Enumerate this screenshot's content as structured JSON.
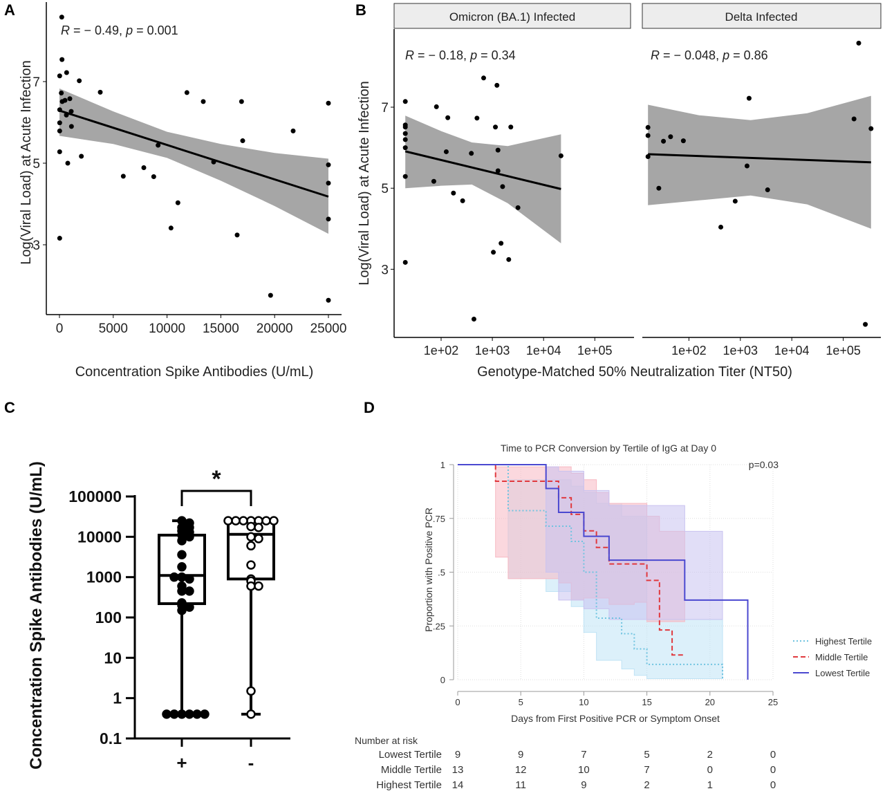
{
  "panel_letters": {
    "a": "A",
    "b": "B",
    "c": "C",
    "d": "D"
  },
  "chart_data": [
    {
      "panel": "A",
      "type": "scatter",
      "xlabel": "Concentration Spike Antibodies (U/mL)",
      "ylabel": "Log(Viral Load) at Acute Infection",
      "annotation": {
        "r_sym": "R",
        "r_val": " = − 0.49, ",
        "p_sym": "p",
        "p_val": " = 0.001"
      },
      "xlim": [
        -1220,
        25250
      ],
      "ylim": [
        1.31,
        9.0
      ],
      "xticks": [
        0,
        5000,
        10000,
        15000,
        20000,
        25000
      ],
      "xtick_labels": [
        "0",
        "5000",
        "10000",
        "15000",
        "20000",
        "25000"
      ],
      "yticks": [
        3,
        5,
        7
      ],
      "ytick_labels": [
        "3",
        "5",
        "7"
      ],
      "points": [
        [
          214,
          8.58
        ],
        [
          236,
          7.54
        ],
        [
          664,
          7.22
        ],
        [
          21,
          7.14
        ],
        [
          1842,
          7.02
        ],
        [
          3792,
          6.74
        ],
        [
          171,
          6.72
        ],
        [
          11847,
          6.73
        ],
        [
          964,
          6.58
        ],
        [
          514,
          6.54
        ],
        [
          257,
          6.51
        ],
        [
          13368,
          6.51
        ],
        [
          16924,
          6.51
        ],
        [
          25000,
          6.47
        ],
        [
          21,
          6.31
        ],
        [
          1093,
          6.27
        ],
        [
          643,
          6.18
        ],
        [
          21,
          5.99
        ],
        [
          1114,
          5.9
        ],
        [
          21,
          5.79
        ],
        [
          21722,
          5.79
        ],
        [
          17031,
          5.55
        ],
        [
          9169,
          5.44
        ],
        [
          14332,
          5.03
        ],
        [
          21,
          5.28
        ],
        [
          2035,
          5.17
        ],
        [
          771,
          5.0
        ],
        [
          25000,
          4.96
        ],
        [
          7841,
          4.89
        ],
        [
          5934,
          4.68
        ],
        [
          8762,
          4.67
        ],
        [
          25000,
          4.51
        ],
        [
          11011,
          4.03
        ],
        [
          10368,
          3.41
        ],
        [
          25000,
          3.63
        ],
        [
          16517,
          3.24
        ],
        [
          21,
          3.16
        ],
        [
          19623,
          1.76
        ],
        [
          25000,
          1.64
        ]
      ],
      "fit_line": [
        [
          0,
          6.29
        ],
        [
          25000,
          4.18
        ]
      ],
      "ci_band": {
        "x": [
          0,
          5000,
          10000,
          15000,
          20000,
          25000
        ],
        "lower": [
          5.67,
          5.47,
          5.13,
          4.57,
          3.95,
          3.27
        ],
        "upper": [
          6.83,
          6.27,
          5.77,
          5.47,
          5.25,
          5.11
        ]
      }
    },
    {
      "panel": "B",
      "type": "scatter",
      "xlabel": "Genotype-Matched 50% Neutralization Titer (NT50)",
      "ylabel": "Log(Viral Load) at Acute Infection",
      "xscale": "log",
      "yticks": [
        3,
        5,
        7
      ],
      "ytick_labels": [
        "3",
        "5",
        "7"
      ],
      "ylim": [
        1.3,
        8.93
      ],
      "xticks": [
        100,
        1000,
        10000,
        100000
      ],
      "xtick_labels": [
        "1e+02",
        "1e+03",
        "1e+04",
        "1e+05"
      ],
      "facets": [
        {
          "title": "Omicron (BA.1) Infected",
          "annotation": {
            "r_sym": "R",
            "r_val": " = − 0.18, ",
            "p_sym": "p",
            "p_val": " = 0.34"
          },
          "xlim": [
            12.3,
            575000
          ],
          "points": [
            [
              20,
              7.14
            ],
            [
              20,
              6.56
            ],
            [
              20,
              6.51
            ],
            [
              20,
              6.35
            ],
            [
              20,
              6.2
            ],
            [
              20,
              6.0
            ],
            [
              20,
              5.29
            ],
            [
              20,
              3.17
            ],
            [
              81,
              7.01
            ],
            [
              135,
              6.74
            ],
            [
              126,
              5.9
            ],
            [
              72,
              5.17
            ],
            [
              174,
              4.88
            ],
            [
              263,
              4.69
            ],
            [
              389,
              5.86
            ],
            [
              501,
              6.73
            ],
            [
              676,
              7.72
            ],
            [
              1230,
              7.54
            ],
            [
              1148,
              6.51
            ],
            [
              2291,
              6.51
            ],
            [
              1288,
              5.94
            ],
            [
              1288,
              5.43
            ],
            [
              1585,
              5.04
            ],
            [
              3162,
              4.52
            ],
            [
              1479,
              3.64
            ],
            [
              1047,
              3.42
            ],
            [
              2089,
              3.24
            ],
            [
              437,
              1.77
            ],
            [
              21878,
              5.8
            ]
          ],
          "fit_line": [
            [
              20,
              5.91
            ],
            [
              21878,
              4.98
            ]
          ],
          "ci_band": {
            "x": [
              20,
              100,
              398,
              1995,
              21878
            ],
            "lower": [
              5.0,
              5.06,
              5.09,
              4.63,
              3.64
            ],
            "upper": [
              6.79,
              6.41,
              6.13,
              6.04,
              6.33
            ]
          }
        },
        {
          "title": "Delta Infected",
          "annotation": {
            "r_sym": "R",
            "r_val": " = − 0.048, ",
            "p_sym": "p",
            "p_val": " = 0.86"
          },
          "xlim": [
            12.6,
            537000
          ],
          "points": [
            [
              16,
              6.5
            ],
            [
              16,
              6.3
            ],
            [
              16,
              5.78
            ],
            [
              32,
              6.16
            ],
            [
              44,
              6.27
            ],
            [
              78,
              6.17
            ],
            [
              26,
              5.0
            ],
            [
              417,
              4.04
            ],
            [
              794,
              4.68
            ],
            [
              1349,
              5.55
            ],
            [
              1479,
              7.22
            ],
            [
              3388,
              4.96
            ],
            [
              162000,
              6.71
            ],
            [
              200000,
              8.58
            ],
            [
              347000,
              6.47
            ],
            [
              269000,
              1.64
            ]
          ],
          "fit_line": [
            [
              16,
              5.84
            ],
            [
              347000,
              5.64
            ]
          ],
          "ci_band": {
            "x": [
              16,
              158,
              1585,
              19953,
              347000
            ],
            "lower": [
              4.58,
              4.7,
              4.82,
              4.6,
              4.0
            ],
            "upper": [
              7.06,
              6.8,
              6.68,
              6.85,
              7.28
            ]
          }
        }
      ]
    },
    {
      "panel": "C",
      "type": "box",
      "ylabel": "Concentration Spike Antibodies (U/mL)",
      "yscale": "log",
      "ylim": [
        0.1,
        100000
      ],
      "yticks": [
        0.1,
        1,
        10,
        100,
        1000,
        10000,
        100000
      ],
      "ytick_labels": [
        "0.1",
        "1",
        "10",
        "100",
        "1000",
        "10000",
        "100000"
      ],
      "categories": [
        "+",
        "-"
      ],
      "significance": "*",
      "groups": [
        {
          "category": "+",
          "min": 0.4,
          "q1": 220,
          "median": 1100,
          "q3": 11000,
          "max": 25000,
          "marker": "filled",
          "points": [
            25000,
            22000,
            17000,
            17000,
            14000,
            13000,
            11000,
            10000,
            8000,
            3600,
            1800,
            1000,
            900,
            1000,
            600,
            450,
            450,
            230,
            200,
            180,
            150,
            0.4,
            0.4,
            0.4,
            0.4,
            0.4,
            0.4
          ]
        },
        {
          "category": "-",
          "min": 0.4,
          "q1": 900,
          "median": 11500,
          "q3": 24000,
          "max": 25000,
          "marker": "open",
          "points": [
            25000,
            25000,
            25000,
            25000,
            25000,
            25000,
            25000,
            18000,
            17000,
            10000,
            9000,
            6000,
            2000,
            900,
            800,
            600,
            600,
            1.5,
            0.4
          ]
        }
      ]
    },
    {
      "panel": "D",
      "type": "line",
      "title": "Time to PCR Conversion by Tertile of IgG at Day 0",
      "pvalue": "p=0.03",
      "xlabel": "Days from First Positive PCR or Symptom Onset",
      "ylabel": "Proportion with Positive PCR",
      "xlim": [
        0,
        25
      ],
      "ylim": [
        0,
        1
      ],
      "xticks": [
        0,
        5,
        10,
        15,
        20,
        25
      ],
      "xtick_labels": [
        "0",
        "5",
        "10",
        "15",
        "20",
        "25"
      ],
      "yticks": [
        0,
        0.25,
        0.5,
        0.75,
        1
      ],
      "ytick_labels": [
        "0",
        ".25",
        ".5",
        ".75",
        "1"
      ],
      "grid": true,
      "legend_position": "right",
      "series": [
        {
          "name": "Highest Tertile",
          "color": "#6ec3e0",
          "style": "dotted",
          "fill": "#bfe3f5",
          "steps": [
            [
              0,
              1
            ],
            [
              4,
              0.786
            ],
            [
              7,
              0.714
            ],
            [
              9,
              0.643
            ],
            [
              10,
              0.5
            ],
            [
              11,
              0.286
            ],
            [
              13,
              0.214
            ],
            [
              14,
              0.143
            ],
            [
              15,
              0.071
            ],
            [
              21,
              0
            ]
          ],
          "end": 21,
          "ci_upper": [
            [
              4,
              0.93
            ],
            [
              9,
              0.9
            ],
            [
              10,
              0.87
            ],
            [
              11,
              0.82
            ],
            [
              13,
              0.76
            ],
            [
              15,
              0.28
            ],
            [
              21,
              0.28
            ]
          ],
          "ci_lower": [
            [
              4,
              0.47
            ],
            [
              7,
              0.41
            ],
            [
              9,
              0.34
            ],
            [
              10,
              0.22
            ],
            [
              11,
              0.09
            ],
            [
              13,
              0.05
            ],
            [
              14,
              0.02
            ],
            [
              15,
              0.005
            ],
            [
              21,
              0.005
            ]
          ]
        },
        {
          "name": "Middle Tertile",
          "color": "#e0393e",
          "style": "dashed",
          "fill": "#f7b8c2",
          "steps": [
            [
              0,
              1
            ],
            [
              3,
              0.923
            ],
            [
              8,
              0.846
            ],
            [
              9,
              0.769
            ],
            [
              10,
              0.692
            ],
            [
              11,
              0.615
            ],
            [
              12,
              0.538
            ],
            [
              15,
              0.462
            ],
            [
              16,
              0.231
            ],
            [
              17,
              0.115
            ]
          ],
          "end": 18,
          "ci_upper": [
            [
              3,
              0.99
            ],
            [
              9,
              0.96
            ],
            [
              10,
              0.93
            ],
            [
              11,
              0.87
            ],
            [
              12,
              0.82
            ],
            [
              15,
              0.76
            ],
            [
              16,
              0.69
            ],
            [
              18,
              0.69
            ]
          ],
          "ci_lower": [
            [
              3,
              0.57
            ],
            [
              4,
              0.47
            ],
            [
              8,
              0.45
            ],
            [
              9,
              0.37
            ],
            [
              10,
              0.38
            ],
            [
              12,
              0.35
            ],
            [
              14,
              0.36
            ],
            [
              15,
              0.27
            ],
            [
              18,
              0.27
            ]
          ]
        },
        {
          "name": "Lowest Tertile",
          "color": "#4a48d0",
          "style": "solid",
          "fill": "#c9c2f0",
          "steps": [
            [
              0,
              1
            ],
            [
              7,
              0.889
            ],
            [
              8,
              0.778
            ],
            [
              10,
              0.667
            ],
            [
              12,
              0.556
            ],
            [
              18,
              0.37
            ],
            [
              23,
              0
            ]
          ],
          "end": 23,
          "ci_upper": [
            [
              7,
              0.99
            ],
            [
              8,
              0.97
            ],
            [
              10,
              0.88
            ],
            [
              12,
              0.81
            ],
            [
              18,
              0.69
            ],
            [
              21,
              0.69
            ]
          ],
          "ci_lower": [
            [
              7,
              0.5
            ],
            [
              8,
              0.37
            ],
            [
              10,
              0.33
            ],
            [
              12,
              0.28
            ],
            [
              21,
              0.28
            ]
          ]
        }
      ],
      "risk_table": {
        "title": "Number at risk",
        "times": [
          0,
          5,
          10,
          15,
          20,
          25
        ],
        "rows": [
          {
            "label": "Lowest Tertile",
            "values": [
              "9",
              "9",
              "7",
              "5",
              "2",
              "0"
            ]
          },
          {
            "label": "Middle Tertile",
            "values": [
              "13",
              "12",
              "10",
              "7",
              "0",
              "0"
            ]
          },
          {
            "label": "Highest Tertile",
            "values": [
              "14",
              "11",
              "9",
              "2",
              "1",
              "0"
            ]
          }
        ]
      }
    }
  ]
}
